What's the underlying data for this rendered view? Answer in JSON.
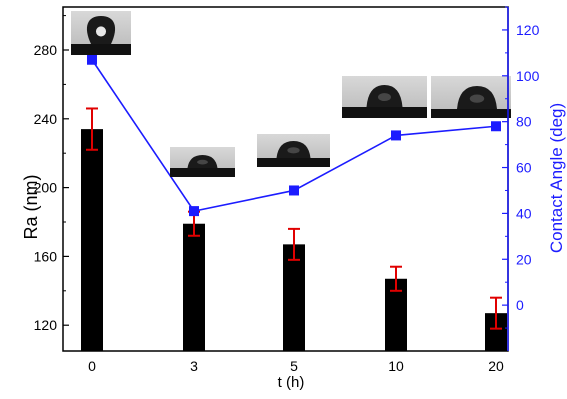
{
  "chart_data": {
    "type": "bar",
    "xlabel": "t (h)",
    "ylabel": "Ra (nm)",
    "ylabel_right": "Contact Angle (deg)",
    "categories": [
      "0",
      "3",
      "5",
      "10",
      "20"
    ],
    "ylim": [
      105,
      305
    ],
    "yticks": [
      120,
      160,
      200,
      240,
      280
    ],
    "ylim_right": [
      -20,
      130
    ],
    "yticks_right": [
      0,
      20,
      40,
      60,
      80,
      100,
      120
    ],
    "series": [
      {
        "axis": "left",
        "kind": "bar",
        "values": [
          234,
          179,
          167,
          147,
          127
        ],
        "errors": [
          12,
          7,
          9,
          7,
          9
        ],
        "color": "#000000",
        "error_color": "#e00000"
      },
      {
        "axis": "right",
        "kind": "line",
        "values": [
          107,
          41,
          50,
          74,
          78
        ],
        "color": "#1c1cff"
      }
    ],
    "insets": [
      "droplet-0h",
      "droplet-3h",
      "droplet-5h",
      "droplet-10h",
      "droplet-20h"
    ],
    "colors": {
      "left_axis": "#000000",
      "right_axis": "#1c1cff"
    }
  }
}
